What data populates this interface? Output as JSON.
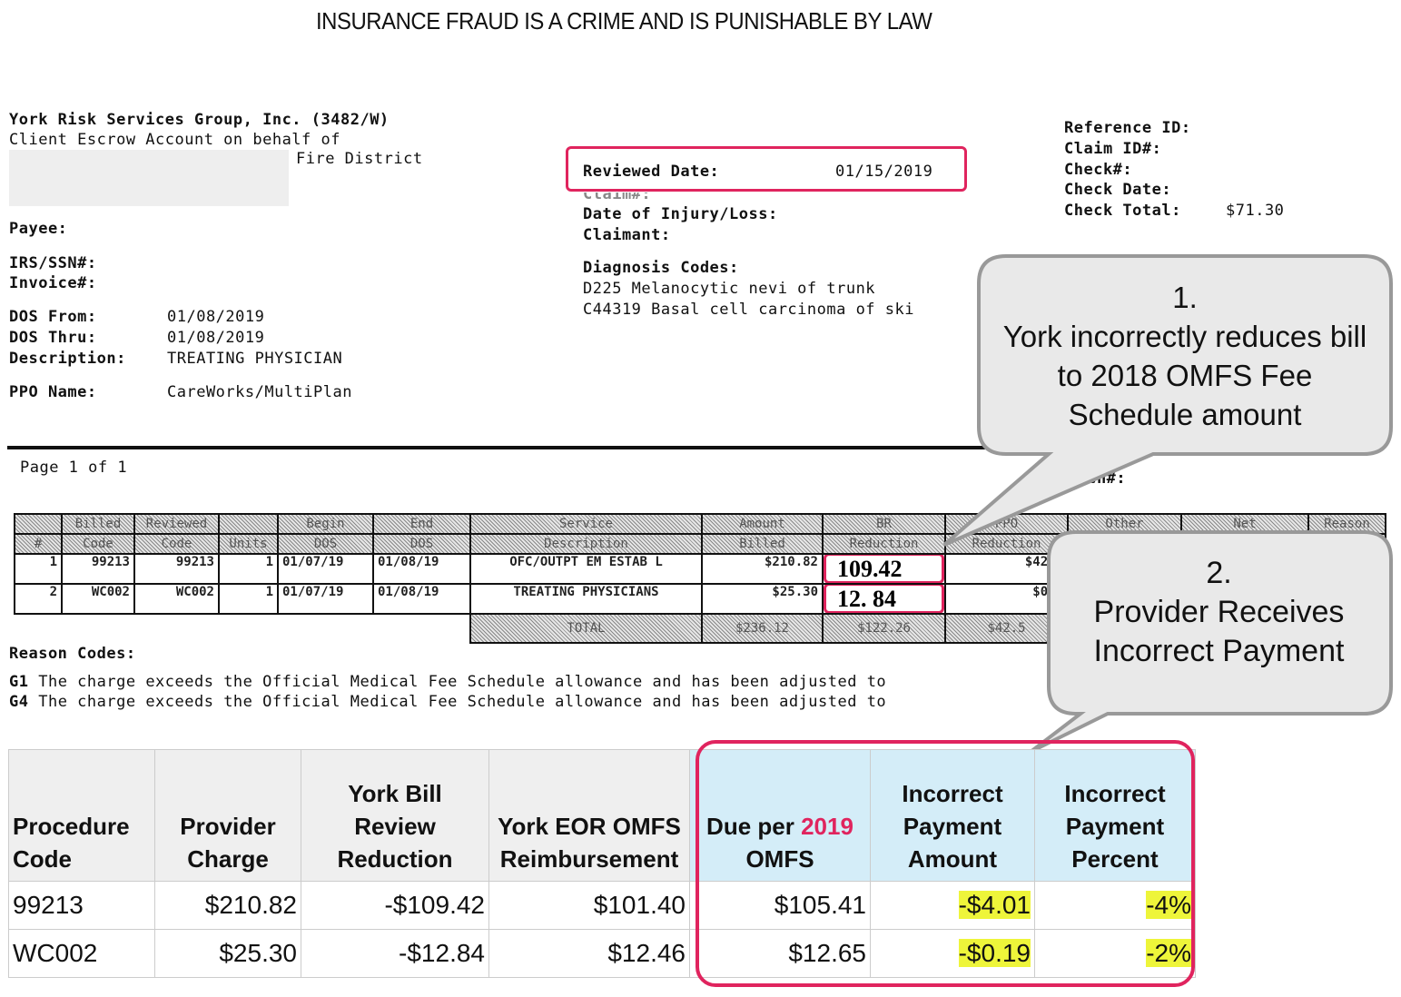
{
  "banner": "INSURANCE FRAUD IS A CRIME AND IS PUNISHABLE BY LAW",
  "eor": {
    "company": "York Risk Services Group, Inc. (3482/W)",
    "client_line": "Client Escrow Account on behalf of",
    "district": "Fire District",
    "payee_label": "Payee:",
    "irs_label": "IRS/SSN#:",
    "invoice_label": "Invoice#:",
    "dos_from_label": "DOS From:",
    "dos_from": "01/08/2019",
    "dos_thru_label": "DOS Thru:",
    "dos_thru": "01/08/2019",
    "description_label": "Description:",
    "description": "TREATING PHYSICIAN",
    "ppo_label": "PPO Name:",
    "ppo": "CareWorks/MultiPlan",
    "reviewed_date_label": "Reviewed Date:",
    "reviewed_date": "01/15/2019",
    "claim_label": "Claim#:",
    "doi_label": "Date of Injury/Loss:",
    "claimant_label": "Claimant:",
    "diagnosis_label": "Diagnosis Codes:",
    "diagnosis": [
      "D225 Melanocytic nevi of trunk",
      "C44319 Basal cell carcinoma of ski"
    ],
    "reference_label": "Reference ID:",
    "claim_id_label": "Claim ID#:",
    "check_label": "Check#:",
    "check_date_label": "Check Date:",
    "check_total_label": "Check Total:",
    "check_total": "$71.30",
    "batch_label": "Batch#:",
    "page": "Page 1 of 1",
    "table": {
      "headers": [
        [
          "#",
          ""
        ],
        [
          "Billed",
          "Code"
        ],
        [
          "Reviewed",
          "Code"
        ],
        [
          "",
          "Units"
        ],
        [
          "Begin",
          "DOS"
        ],
        [
          "End",
          "DOS"
        ],
        [
          "Service",
          "Description"
        ],
        [
          "Amount",
          "Billed"
        ],
        [
          "BR",
          "Reduction"
        ],
        [
          "PPO",
          "Reduction"
        ],
        [
          "Other",
          ""
        ],
        [
          "Net",
          ""
        ],
        [
          "Reason",
          ""
        ]
      ],
      "rows": [
        [
          "1",
          "99213",
          "99213",
          "1",
          "01/07/19",
          "01/08/19",
          "OFC/OUTPT EM ESTAB L",
          "$210.82",
          "109.42",
          "$42.5"
        ],
        [
          "2",
          "WC002",
          "WC002",
          "1",
          "01/07/19",
          "01/08/19",
          "TREATING PHYSICIANS",
          "$25.30",
          "12. 84",
          "$0.0"
        ]
      ],
      "total_label": "TOTAL",
      "total": [
        "$236.12",
        "$122.26",
        "$42.5"
      ]
    },
    "reason_codes_label": "Reason Codes:",
    "reason_codes": [
      {
        "code": "G1",
        "text": "The charge exceeds the Official Medical Fee Schedule allowance and has been adjusted to"
      },
      {
        "code": "G4",
        "text": "The charge exceeds the Official Medical Fee Schedule allowance and has been adjusted to"
      }
    ]
  },
  "callouts": [
    {
      "number": "1.",
      "text": "York incorrectly reduces bill to 2018 OMFS Fee Schedule amount"
    },
    {
      "number": "2.",
      "text": "Provider Receives Incorrect Payment"
    }
  ],
  "summary": {
    "headers": [
      "Procedure Code",
      "Provider Charge",
      "York Bill Review Reduction",
      "York EOR OMFS Reimbursement",
      "Due per",
      "2019",
      "OMFS",
      "Incorrect Payment Amount",
      "Incorrect Payment Percent"
    ],
    "rows": [
      [
        "99213",
        "$210.82",
        "-$109.42",
        "$101.40",
        "$105.41",
        "-$4.01",
        "-4%"
      ],
      [
        "WC002",
        "$25.30",
        "-$12.84",
        "$12.46",
        "$12.65",
        "-$0.19",
        "-2%"
      ]
    ]
  },
  "colors": {
    "highlight_border": "#e0245e",
    "highlight_fill": "#eef53a",
    "accent_text": "#e0245e",
    "blue_header": "#d4edf8"
  }
}
